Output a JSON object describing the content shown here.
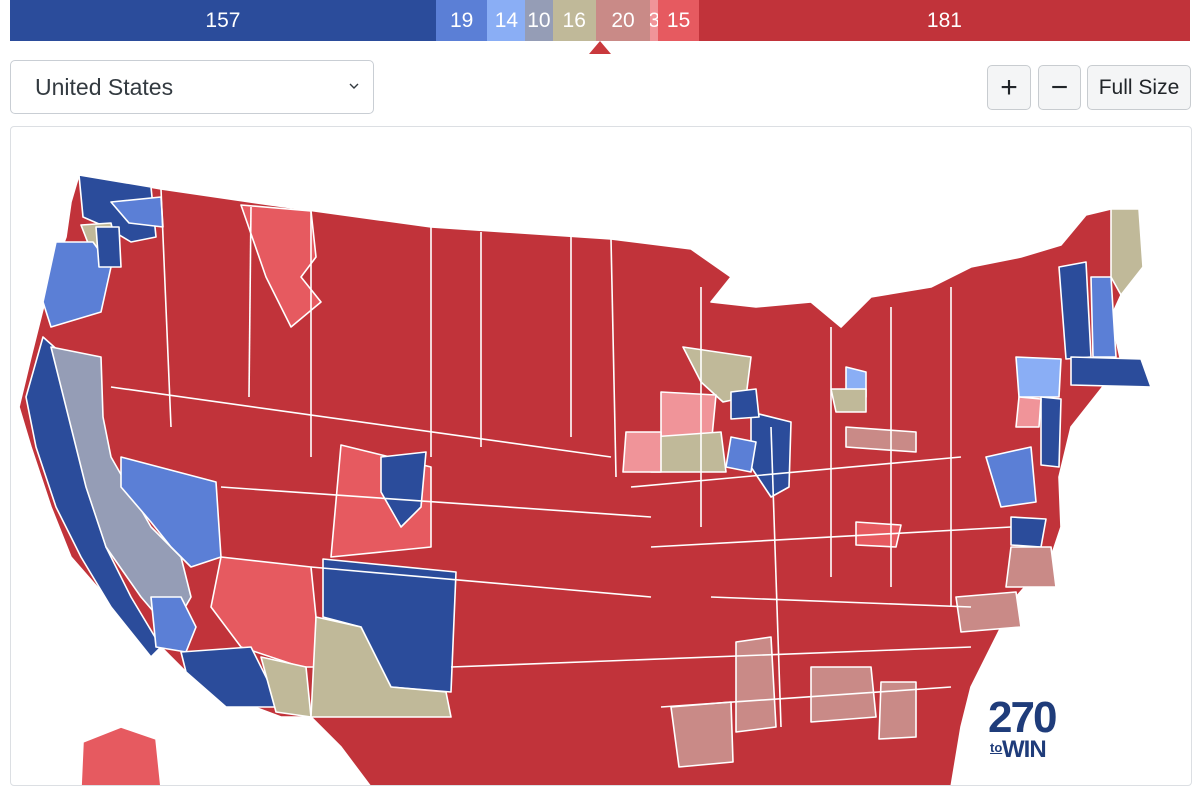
{
  "seat_bar": {
    "segments": [
      {
        "label": "157",
        "value": 157,
        "color": "#2b4c9b",
        "party": "safe-dem"
      },
      {
        "label": "19",
        "value": 19,
        "color": "#5b7fd6",
        "party": "likely-dem"
      },
      {
        "label": "14",
        "value": 14,
        "color": "#8aaef5",
        "party": "lean-dem"
      },
      {
        "label": "10",
        "value": 10,
        "color": "#959db6",
        "party": "tilt-dem"
      },
      {
        "label": "16",
        "value": 16,
        "color": "#c0b999",
        "party": "toss-up"
      },
      {
        "label": "20",
        "value": 20,
        "color": "#c98a87",
        "party": "tilt-rep"
      },
      {
        "label": "3",
        "value": 3,
        "color": "#f09499",
        "party": "lean-rep"
      },
      {
        "label": "15",
        "value": 15,
        "color": "#e65a60",
        "party": "likely-rep"
      },
      {
        "label": "181",
        "value": 181,
        "color": "#c1333a",
        "party": "safe-rep"
      }
    ]
  },
  "controls": {
    "region_select": {
      "selected": "United States"
    },
    "zoom_in_label": "+",
    "zoom_out_label": "−",
    "full_size_label": "Full Size"
  },
  "map": {
    "colors": {
      "safe_dem": "#2b4c9b",
      "likely_dem": "#5b7fd6",
      "lean_dem": "#8aaef5",
      "tilt_dem": "#959db6",
      "toss_up": "#c0b999",
      "tilt_rep": "#c98a87",
      "lean_rep": "#f09499",
      "likely_rep": "#e65a60",
      "safe_rep": "#c1333a",
      "border": "#ffffff"
    }
  },
  "logo": {
    "number": "270",
    "to": "to",
    "win": "WIN"
  }
}
